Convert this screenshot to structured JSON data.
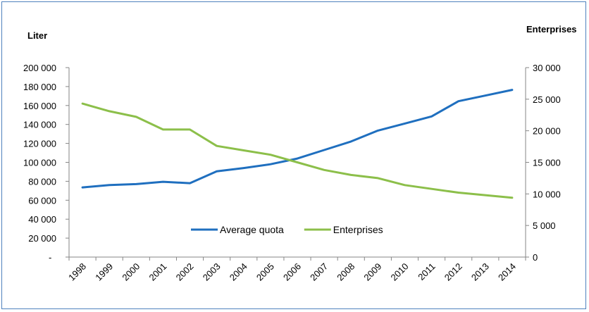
{
  "chart_data": {
    "type": "line",
    "title": "",
    "ylabel_left": "Liter",
    "ylabel_right": "Enterprises",
    "x": [
      "1998",
      "1999",
      "2000",
      "2001",
      "2002",
      "2003",
      "2004",
      "2005",
      "2006",
      "2007",
      "2008",
      "2009",
      "2010",
      "2011",
      "2012",
      "2013",
      "2014"
    ],
    "y_left_ticks": [
      "-",
      "20 000",
      "40 000",
      "60 000",
      "80 000",
      "100 000",
      "120 000",
      "140 000",
      "160 000",
      "180 000",
      "200 000"
    ],
    "y_right_ticks": [
      "0",
      "5 000",
      "10 000",
      "15 000",
      "20 000",
      "25 000",
      "30 000"
    ],
    "ylim_left": [
      0,
      200000
    ],
    "ylim_right": [
      0,
      30000
    ],
    "legend_position": "inside-bottom-center",
    "grid": false,
    "series": [
      {
        "name": "Average quota",
        "axis": "left",
        "color": "#1f6fbf",
        "values": [
          73500,
          76000,
          77000,
          79500,
          78000,
          90500,
          94000,
          98000,
          104000,
          113000,
          122000,
          133500,
          141000,
          148500,
          164500,
          170500,
          176500
        ]
      },
      {
        "name": "Enterprises",
        "axis": "right",
        "color": "#8cbf4a",
        "values": [
          24300,
          23100,
          22200,
          20200,
          20200,
          17600,
          16900,
          16200,
          15000,
          13800,
          13000,
          12500,
          11400,
          10800,
          10200,
          9800,
          9400
        ]
      }
    ]
  }
}
